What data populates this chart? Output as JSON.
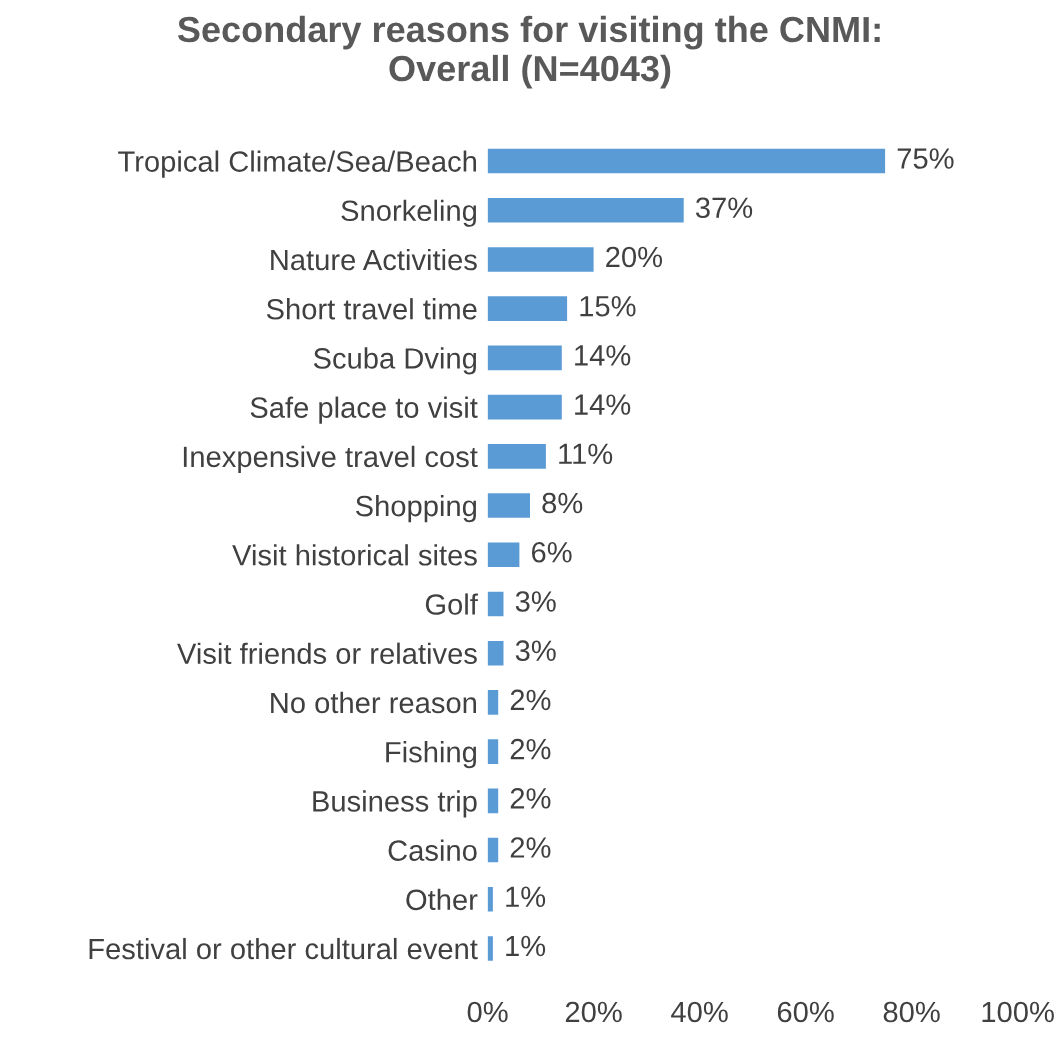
{
  "chart_data": {
    "type": "bar",
    "orientation": "horizontal",
    "title": "Secondary reasons for visiting the CNMI:\nOverall (N=4043)",
    "categories": [
      "Tropical Climate/Sea/Beach",
      "Snorkeling",
      "Nature Activities",
      "Short travel time",
      "Scuba Dving",
      "Safe place to visit",
      "Inexpensive travel cost",
      "Shopping",
      "Visit historical sites",
      "Golf",
      "Visit friends or relatives",
      "No other reason",
      "Fishing",
      "Business trip",
      "Casino",
      "Other",
      "Festival or other cultural event"
    ],
    "values": [
      75,
      37,
      20,
      15,
      14,
      14,
      11,
      8,
      6,
      3,
      3,
      2,
      2,
      2,
      2,
      1,
      1
    ],
    "value_labels": [
      "75%",
      "37%",
      "20%",
      "15%",
      "14%",
      "14%",
      "11%",
      "8%",
      "6%",
      "3%",
      "3%",
      "2%",
      "2%",
      "2%",
      "2%",
      "1%",
      "1%"
    ],
    "color": "#5b9bd5",
    "xlim": [
      0,
      100
    ],
    "xticks": [
      {
        "value": 0,
        "label": "0%"
      },
      {
        "value": 20,
        "label": "20%"
      },
      {
        "value": 40,
        "label": "40%"
      },
      {
        "value": 60,
        "label": "60%"
      },
      {
        "value": 80,
        "label": "80%"
      },
      {
        "value": 100,
        "label": "100%"
      }
    ],
    "grid": false,
    "legend": false
  }
}
